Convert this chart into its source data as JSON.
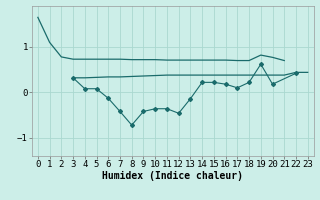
{
  "xlabel": "Humidex (Indice chaleur)",
  "background_color": "#cceee8",
  "grid_color": "#aad8d0",
  "line_color": "#1a6b6b",
  "x_data": [
    0,
    1,
    2,
    3,
    4,
    5,
    6,
    7,
    8,
    9,
    10,
    11,
    12,
    13,
    14,
    15,
    16,
    17,
    18,
    19,
    20,
    21,
    22,
    23
  ],
  "line1_y": [
    1.65,
    1.1,
    0.78,
    0.73,
    0.73,
    0.73,
    0.73,
    0.73,
    0.72,
    0.72,
    0.72,
    0.71,
    0.71,
    0.71,
    0.71,
    0.71,
    0.71,
    0.7,
    0.7,
    0.82,
    0.77,
    0.7,
    null,
    null
  ],
  "line2_y": [
    null,
    null,
    null,
    0.32,
    0.32,
    0.33,
    0.34,
    0.34,
    0.35,
    0.36,
    0.37,
    0.38,
    0.38,
    0.38,
    0.38,
    0.38,
    0.38,
    0.38,
    0.38,
    0.38,
    0.38,
    0.38,
    0.44,
    0.44
  ],
  "line3_y": [
    null,
    null,
    null,
    0.32,
    0.08,
    0.08,
    -0.13,
    -0.42,
    -0.72,
    -0.42,
    -0.36,
    -0.36,
    -0.46,
    -0.14,
    0.22,
    0.22,
    0.18,
    0.1,
    0.22,
    0.62,
    0.18,
    null,
    0.42,
    null
  ],
  "ylim": [
    -1.4,
    1.9
  ],
  "xlim": [
    -0.5,
    23.5
  ],
  "yticks": [
    -1,
    0,
    1
  ],
  "xticks": [
    0,
    1,
    2,
    3,
    4,
    5,
    6,
    7,
    8,
    9,
    10,
    11,
    12,
    13,
    14,
    15,
    16,
    17,
    18,
    19,
    20,
    21,
    22,
    23
  ],
  "figsize": [
    3.2,
    2.0
  ],
  "dpi": 100,
  "label_fontsize": 7,
  "tick_fontsize": 6.5
}
